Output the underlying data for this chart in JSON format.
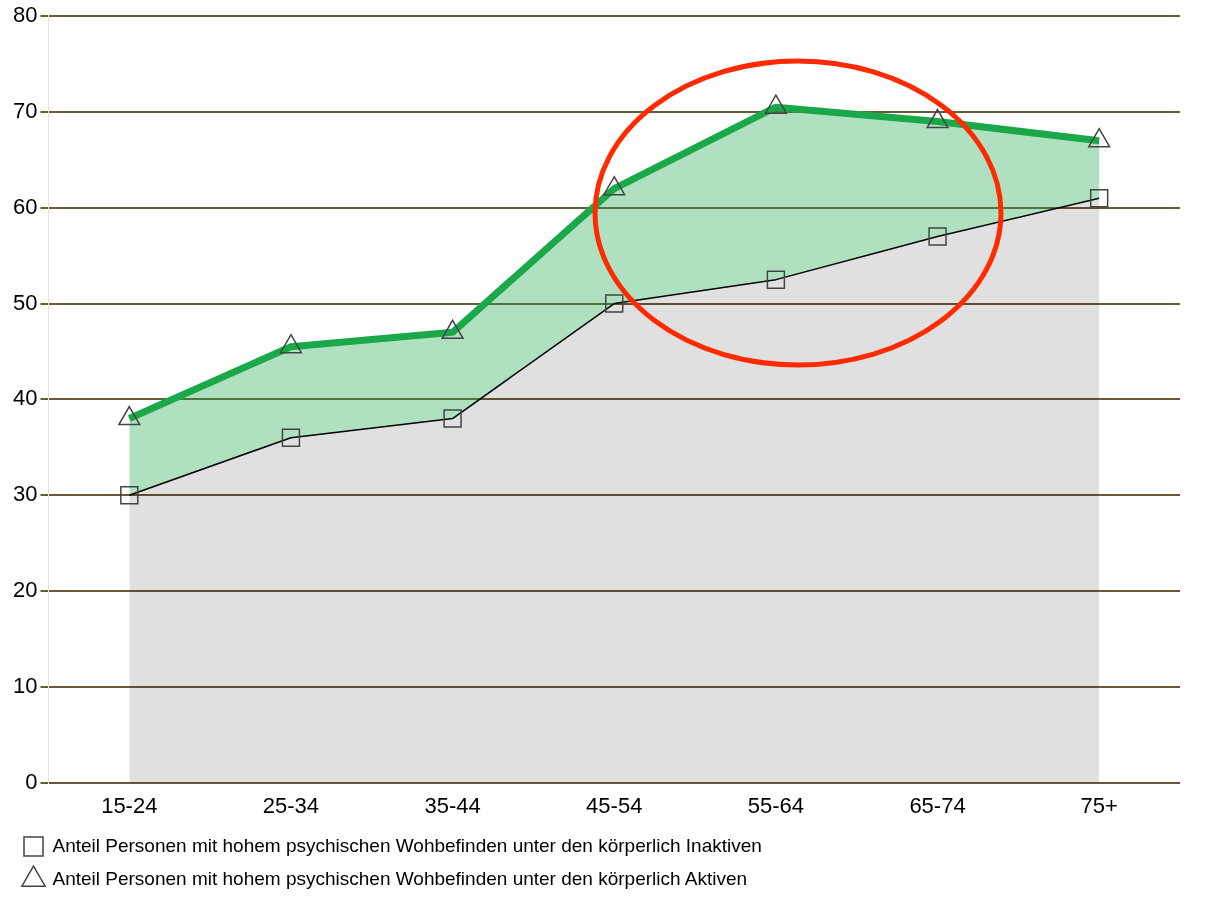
{
  "chart_data": {
    "type": "area",
    "categories": [
      "15-24",
      "25-34",
      "35-44",
      "45-54",
      "55-64",
      "65-74",
      "75+"
    ],
    "series": [
      {
        "name": "Anteil Personen mit hohem psychischen Wohbefinden unter den körperlich Inaktiven",
        "color": "#000000",
        "marker": "square",
        "values": [
          30,
          36,
          38,
          50,
          52.5,
          57,
          61
        ]
      },
      {
        "name": "Anteil Personen mit hohem psychischen Wohbefinden unter den körperlich Aktiven",
        "color": "#1aa84a",
        "marker": "triangle",
        "values": [
          38,
          45.5,
          47,
          62,
          70.5,
          69,
          67
        ]
      }
    ],
    "ylim": [
      0,
      80
    ],
    "yticks": [
      0,
      10,
      20,
      30,
      40,
      50,
      60,
      70,
      80
    ],
    "grid": "y",
    "legend": "bottom"
  }
}
